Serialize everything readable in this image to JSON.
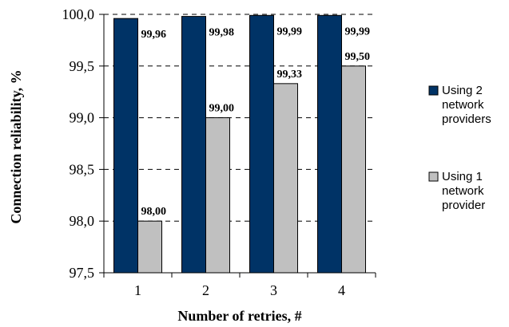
{
  "chart_data": {
    "type": "bar",
    "title": "",
    "xlabel": "Number of retries, #",
    "ylabel": "Connection reliability, %",
    "categories": [
      "1",
      "2",
      "3",
      "4"
    ],
    "ylim": [
      97.5,
      100.0
    ],
    "yticks": [
      "97,5",
      "98,0",
      "98,5",
      "99,0",
      "99,5",
      "100,0"
    ],
    "ytick_values": [
      97.5,
      98.0,
      98.5,
      99.0,
      99.5,
      100.0
    ],
    "grid": "horizontal dashed",
    "legend_position": "right",
    "series": [
      {
        "name": "Using 2 network providers",
        "legend_lines": [
          "Using 2",
          "network",
          "providers"
        ],
        "color": "#003366",
        "values": [
          99.96,
          99.98,
          99.99,
          99.99
        ],
        "labels": [
          "99,96",
          "99,98",
          "99,99",
          "99,99"
        ]
      },
      {
        "name": "Using 1 network provider",
        "legend_lines": [
          "Using 1",
          "network",
          "provider"
        ],
        "color": "#c0c0c0",
        "values": [
          98.0,
          99.0,
          99.33,
          99.5
        ],
        "labels": [
          "98,00",
          "99,00",
          "99,33",
          "99,50"
        ]
      }
    ]
  }
}
